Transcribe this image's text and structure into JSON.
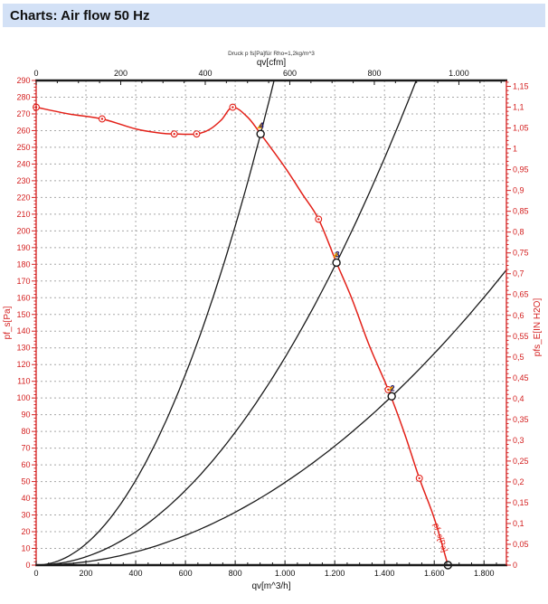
{
  "window": {
    "title": "Charts: Air flow 50 Hz"
  },
  "chart_data": {
    "type": "line",
    "subtitle": "Druck p fs[Pa]für Rho=1,2kg/m^3",
    "colors": {
      "curve": "#e32018",
      "axis_red": "#d42020",
      "black": "#1a1a1a",
      "grid": "#999999",
      "titlebar_bg": "#d3e1f6",
      "point_label": "#1a1a7a",
      "point_flag": "#f0a000"
    },
    "axes": {
      "bottom": {
        "label": "qv[m^3/h]",
        "min": 0,
        "max": 1890,
        "major": 200,
        "minor": 50,
        "tick_labels": [
          "0",
          "200",
          "400",
          "600",
          "800",
          "1.000",
          "1.200",
          "1.400",
          "1.600",
          "1.800"
        ]
      },
      "top": {
        "label": "qv[cfm]",
        "min": 0,
        "max": 1112,
        "major": 200,
        "minor": 50,
        "m3h_per_cfm": 1.699,
        "tick_labels": [
          "0",
          "200",
          "400",
          "600",
          "800",
          "1.000"
        ]
      },
      "left": {
        "label": "pf_s[Pa]",
        "min": 0,
        "max": 290,
        "major": 10,
        "minor": 2,
        "tick_labels": [
          "0",
          "10",
          "20",
          "30",
          "40",
          "50",
          "60",
          "70",
          "80",
          "90",
          "100",
          "110",
          "120",
          "130",
          "140",
          "150",
          "160",
          "170",
          "180",
          "190",
          "200",
          "210",
          "220",
          "230",
          "240",
          "250",
          "260",
          "270",
          "280",
          "290"
        ]
      },
      "right": {
        "label": "pfs_E[IN H2O]",
        "min": 0,
        "max": 1.1642,
        "major": 0.05,
        "minor": 0.01,
        "tick_labels": [
          "0",
          "0,05",
          "0,1",
          "0,15",
          "0,2",
          "0,25",
          "0,3",
          "0,35",
          "0,4",
          "0,45",
          "0,5",
          "0,55",
          "0,6",
          "0,65",
          "0,7",
          "0,75",
          "0,8",
          "0,85",
          "0,9",
          "0,95",
          "1",
          "1,05",
          "1,1",
          "1,15"
        ]
      }
    },
    "series": [
      {
        "name": "pressure-curve",
        "inline_label": "pf_s[Pa]",
        "points": [
          [
            0,
            274
          ],
          [
            130,
            270
          ],
          [
            265,
            267
          ],
          [
            400,
            261
          ],
          [
            500,
            258.5
          ],
          [
            555,
            258
          ],
          [
            645,
            258
          ],
          [
            700,
            261
          ],
          [
            745,
            266.5
          ],
          [
            790,
            274
          ],
          [
            850,
            268
          ],
          [
            902,
            258
          ],
          [
            1000,
            238
          ],
          [
            1070,
            222
          ],
          [
            1135,
            207
          ],
          [
            1207,
            181
          ],
          [
            1270,
            159
          ],
          [
            1340,
            131
          ],
          [
            1415,
            105
          ],
          [
            1480,
            79
          ],
          [
            1540,
            52
          ],
          [
            1600,
            28
          ],
          [
            1655,
            0
          ]
        ],
        "markers": [
          [
            0,
            274
          ],
          [
            265,
            267
          ],
          [
            555,
            258
          ],
          [
            645,
            258
          ],
          [
            790,
            274
          ],
          [
            1135,
            207
          ],
          [
            1415,
            105
          ],
          [
            1540,
            52
          ]
        ]
      }
    ],
    "system_curves": [
      {
        "name": "system-curve-1",
        "k": 0.0003171
      },
      {
        "name": "system-curve-2",
        "k": 0.00012424
      },
      {
        "name": "system-curve-3",
        "k": 4.946e-05
      }
    ],
    "operating_points": [
      {
        "label": "4",
        "qv": 902,
        "p": 258
      },
      {
        "label": "3",
        "qv": 1207,
        "p": 181
      },
      {
        "label": "2",
        "qv": 1429,
        "p": 101
      },
      {
        "label": "",
        "qv": 1655,
        "p": 0
      }
    ],
    "inline_label_pos": {
      "qv": 1615,
      "p": 16,
      "rotate": 72
    }
  }
}
